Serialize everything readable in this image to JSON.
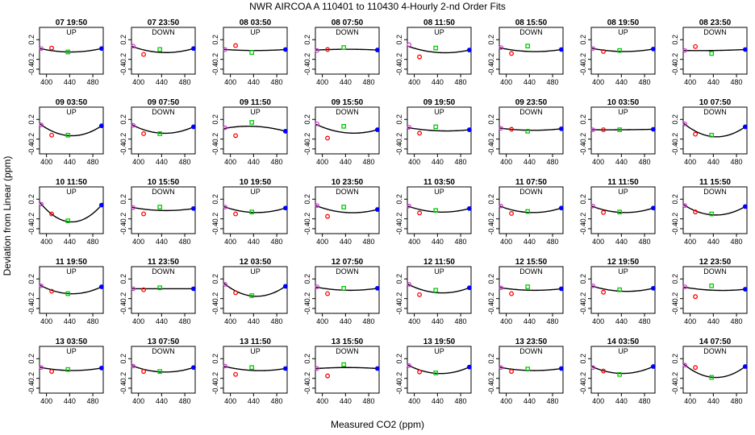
{
  "title": "NWR   AIRCOA A   110401 to 110430   4-Hourly 2-nd Order Fits",
  "xlabel": "Measured CO2 (ppm)",
  "ylabel": "Deviation from Linear (ppm)",
  "colors": {
    "line": "#000000",
    "p1": "#cc33cc",
    "p2": "#ff0000",
    "p3": "#00cc00",
    "p4": "#0000ff"
  },
  "chart_data": {
    "type": "scatter",
    "layout": "small-multiples 5x8",
    "xlim": [
      388,
      498
    ],
    "ylim": [
      -0.5,
      0.45
    ],
    "x_ticks": [
      "400",
      "440",
      "480"
    ],
    "y_ticks": [
      "0.2",
      "-0.2",
      "-0.4"
    ],
    "standard_x": [
      391,
      409,
      437,
      495
    ],
    "panels": [
      {
        "title": "07 19:50",
        "tag": "UP",
        "y": [
          0.02,
          0.03,
          -0.05,
          0.02
        ],
        "fit": [
          0.015,
          -0.05
        ]
      },
      {
        "title": "07 23:50",
        "tag": "DOWN",
        "y": [
          0.07,
          -0.1,
          0.0,
          0.02
        ],
        "fit": [
          0.055,
          -0.06
        ]
      },
      {
        "title": "08 03:50",
        "tag": "UP",
        "y": [
          0.0,
          0.08,
          -0.06,
          0.0
        ],
        "fit": [
          0.0,
          -0.02
        ]
      },
      {
        "title": "08 07:50",
        "tag": "DOWN",
        "y": [
          -0.02,
          0.0,
          0.04,
          -0.01
        ],
        "fit": [
          -0.01,
          0.005
        ]
      },
      {
        "title": "08 11:50",
        "tag": "UP",
        "y": [
          0.1,
          -0.15,
          0.03,
          -0.01
        ],
        "fit": [
          0.06,
          -0.06
        ]
      },
      {
        "title": "08 15:50",
        "tag": "DOWN",
        "y": [
          0.04,
          -0.08,
          0.07,
          0.0
        ],
        "fit": [
          0.03,
          -0.04
        ]
      },
      {
        "title": "08 19:50",
        "tag": "UP",
        "y": [
          0.02,
          -0.04,
          -0.02,
          0.01
        ],
        "fit": [
          0.02,
          -0.04
        ]
      },
      {
        "title": "08 23:50",
        "tag": "DOWN",
        "y": [
          -0.02,
          0.06,
          -0.08,
          0.0
        ],
        "fit": [
          -0.02,
          -0.02
        ]
      },
      {
        "title": "09 03:50",
        "tag": "UP",
        "y": [
          0.09,
          -0.12,
          -0.12,
          0.07
        ],
        "fit": [
          0.09,
          -0.13
        ]
      },
      {
        "title": "09 07:50",
        "tag": "DOWN",
        "y": [
          0.08,
          -0.09,
          -0.09,
          0.05
        ],
        "fit": [
          0.08,
          -0.08
        ]
      },
      {
        "title": "09 11:50",
        "tag": "UP",
        "y": [
          0.03,
          -0.13,
          0.14,
          -0.04
        ],
        "fit": [
          0.02,
          0.06
        ]
      },
      {
        "title": "09 15:50",
        "tag": "DOWN",
        "y": [
          0.11,
          -0.18,
          0.06,
          -0.01
        ],
        "fit": [
          0.09,
          -0.07
        ]
      },
      {
        "title": "09 19:50",
        "tag": "UP",
        "y": [
          0.04,
          -0.08,
          0.05,
          -0.01
        ],
        "fit": [
          0.03,
          -0.03
        ]
      },
      {
        "title": "09 23:50",
        "tag": "DOWN",
        "y": [
          0.02,
          0.0,
          -0.04,
          0.01
        ],
        "fit": [
          0.02,
          -0.02
        ]
      },
      {
        "title": "10 03:50",
        "tag": "UP",
        "y": [
          -0.01,
          -0.01,
          -0.01,
          0.0
        ],
        "fit": [
          -0.01,
          -0.01
        ]
      },
      {
        "title": "10 07:50",
        "tag": "DOWN",
        "y": [
          0.11,
          -0.1,
          -0.12,
          0.05
        ],
        "fit": [
          0.1,
          -0.15
        ]
      },
      {
        "title": "10 11:50",
        "tag": "UP",
        "y": [
          0.1,
          -0.1,
          -0.24,
          0.08
        ],
        "fit": [
          0.1,
          -0.26
        ]
      },
      {
        "title": "10 15:50",
        "tag": "DOWN",
        "y": [
          0.03,
          -0.1,
          0.04,
          0.01
        ],
        "fit": [
          0.03,
          -0.03
        ]
      },
      {
        "title": "10 19:50",
        "tag": "UP",
        "y": [
          0.04,
          -0.1,
          -0.06,
          0.02
        ],
        "fit": [
          0.04,
          -0.07
        ]
      },
      {
        "title": "10 23:50",
        "tag": "DOWN",
        "y": [
          0.07,
          -0.15,
          0.04,
          -0.01
        ],
        "fit": [
          0.06,
          -0.07
        ]
      },
      {
        "title": "11 03:50",
        "tag": "UP",
        "y": [
          0.06,
          -0.08,
          -0.03,
          0.01
        ],
        "fit": [
          0.05,
          -0.06
        ]
      },
      {
        "title": "11 07:50",
        "tag": "DOWN",
        "y": [
          0.06,
          -0.09,
          -0.05,
          0.02
        ],
        "fit": [
          0.05,
          -0.07
        ]
      },
      {
        "title": "11 11:50",
        "tag": "UP",
        "y": [
          0.06,
          -0.07,
          -0.06,
          0.02
        ],
        "fit": [
          0.05,
          -0.07
        ]
      },
      {
        "title": "11 15:50",
        "tag": "DOWN",
        "y": [
          0.07,
          -0.06,
          -0.1,
          0.05
        ],
        "fit": [
          0.07,
          -0.12
        ]
      },
      {
        "title": "11 19:50",
        "tag": "UP",
        "y": [
          0.06,
          -0.05,
          -0.1,
          0.04
        ],
        "fit": [
          0.06,
          -0.1
        ]
      },
      {
        "title": "11 23:50",
        "tag": "DOWN",
        "y": [
          0.0,
          -0.02,
          0.02,
          0.0
        ],
        "fit": [
          0.0,
          0.0
        ]
      },
      {
        "title": "12 03:50",
        "tag": "UP",
        "y": [
          0.09,
          -0.08,
          -0.14,
          0.05
        ],
        "fit": [
          0.09,
          -0.15
        ]
      },
      {
        "title": "12 07:50",
        "tag": "DOWN",
        "y": [
          0.04,
          -0.1,
          0.01,
          0.01
        ],
        "fit": [
          0.03,
          -0.03
        ]
      },
      {
        "title": "12 11:50",
        "tag": "UP",
        "y": [
          0.09,
          -0.12,
          -0.03,
          0.02
        ],
        "fit": [
          0.08,
          -0.08
        ]
      },
      {
        "title": "12 15:50",
        "tag": "DOWN",
        "y": [
          0.02,
          -0.1,
          0.04,
          0.0
        ],
        "fit": [
          0.02,
          -0.03
        ]
      },
      {
        "title": "12 19:50",
        "tag": "UP",
        "y": [
          0.06,
          -0.07,
          -0.02,
          0.01
        ],
        "fit": [
          0.05,
          -0.05
        ]
      },
      {
        "title": "12 23:50",
        "tag": "DOWN",
        "y": [
          0.04,
          -0.16,
          0.06,
          -0.01
        ],
        "fit": [
          0.03,
          -0.03
        ]
      },
      {
        "title": "13 03:50",
        "tag": "UP",
        "y": [
          0.02,
          -0.06,
          -0.02,
          0.01
        ],
        "fit": [
          0.02,
          -0.04
        ]
      },
      {
        "title": "13 07:50",
        "tag": "DOWN",
        "y": [
          0.05,
          -0.06,
          -0.06,
          0.02
        ],
        "fit": [
          0.05,
          -0.07
        ]
      },
      {
        "title": "13 11:50",
        "tag": "UP",
        "y": [
          0.05,
          -0.12,
          0.02,
          0.0
        ],
        "fit": [
          0.04,
          -0.04
        ]
      },
      {
        "title": "13 15:50",
        "tag": "DOWN",
        "y": [
          0.0,
          -0.15,
          0.08,
          0.0
        ],
        "fit": [
          0.0,
          0.02
        ]
      },
      {
        "title": "13 19:50",
        "tag": "UP",
        "y": [
          0.06,
          -0.07,
          -0.09,
          0.03
        ],
        "fit": [
          0.06,
          -0.1
        ]
      },
      {
        "title": "13 23:50",
        "tag": "DOWN",
        "y": [
          0.02,
          -0.06,
          -0.01,
          0.0
        ],
        "fit": [
          0.02,
          -0.04
        ]
      },
      {
        "title": "14 03:50",
        "tag": "UP",
        "y": [
          0.02,
          -0.05,
          -0.12,
          0.04
        ],
        "fit": [
          0.03,
          -0.1
        ]
      },
      {
        "title": "14 07:50",
        "tag": "DOWN",
        "y": [
          0.07,
          0.02,
          -0.18,
          0.04
        ],
        "fit": [
          0.07,
          -0.18
        ]
      }
    ]
  }
}
